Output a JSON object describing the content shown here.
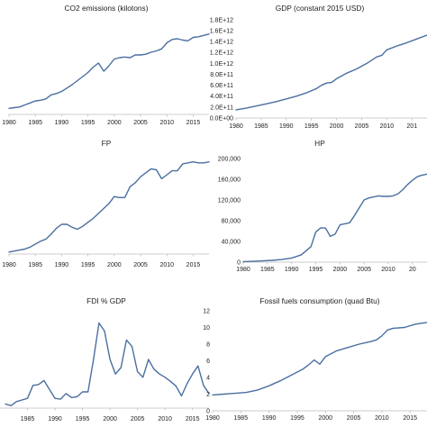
{
  "colors": {
    "line": "#4a6fa0",
    "axis": "#bdbdbd",
    "text": "#222222"
  },
  "chart_data": [
    {
      "type": "line",
      "title": "CO2 emissions (kilotons)",
      "xlabel": "",
      "ylabel": "",
      "xlim": [
        1980,
        2018
      ],
      "x_ticks": [
        "1980",
        "1985",
        "1990",
        "1995",
        "2000",
        "2005",
        "2010",
        "2015"
      ],
      "y_ticks": [
        "",
        "",
        "",
        "",
        "",
        "",
        "",
        ""
      ],
      "ylim": [
        0,
        7
      ],
      "grid": false,
      "series": [
        {
          "x": [
            1980,
            1981,
            1982,
            1983,
            1984,
            1985,
            1986,
            1987,
            1988,
            1989,
            1990,
            1991,
            1992,
            1993,
            1994,
            1995,
            1996,
            1997,
            1998,
            1999,
            2000,
            2001,
            2002,
            2003,
            2004,
            2005,
            2006,
            2007,
            2008,
            2009,
            2010,
            2011,
            2012,
            2013,
            2014,
            2015,
            2016,
            2017,
            2018
          ],
          "y": [
            0.45,
            0.5,
            0.55,
            0.7,
            0.85,
            1.0,
            1.05,
            1.15,
            1.45,
            1.55,
            1.7,
            1.95,
            2.2,
            2.5,
            2.8,
            3.1,
            3.5,
            3.8,
            3.2,
            3.6,
            4.1,
            4.2,
            4.25,
            4.2,
            4.4,
            4.4,
            4.45,
            4.6,
            4.7,
            4.85,
            5.3,
            5.55,
            5.6,
            5.5,
            5.45,
            5.7,
            5.75,
            5.85,
            5.95
          ]
        }
      ]
    },
    {
      "type": "line",
      "title": "GDP (constant 2015 USD)",
      "xlabel": "",
      "ylabel": "",
      "xlim": [
        1980,
        2018
      ],
      "x_ticks": [
        "1980",
        "1985",
        "1990",
        "1995",
        "2000",
        "2005",
        "2010",
        "201"
      ],
      "y_ticks": [
        "0.0E+00",
        "2.0E+11",
        "4.0E+11",
        "6.0E+11",
        "8.0E+11",
        "1.0E+12",
        "1.2E+12",
        "1.4E+12",
        "1.6E+12",
        "1.8E+12"
      ],
      "ylim": [
        0,
        1.8
      ],
      "grid": false,
      "series": [
        {
          "x": [
            1980,
            1982,
            1984,
            1986,
            1988,
            1990,
            1992,
            1994,
            1996,
            1997,
            1998,
            1999,
            2000,
            2002,
            2004,
            2006,
            2008,
            2009,
            2010,
            2012,
            2014,
            2016,
            2018
          ],
          "y": [
            0.15,
            0.18,
            0.22,
            0.26,
            0.3,
            0.35,
            0.4,
            0.46,
            0.54,
            0.6,
            0.64,
            0.65,
            0.72,
            0.82,
            0.9,
            1.0,
            1.12,
            1.15,
            1.25,
            1.32,
            1.38,
            1.45,
            1.52
          ]
        }
      ]
    },
    {
      "type": "line",
      "title": "FP",
      "xlabel": "",
      "ylabel": "",
      "xlim": [
        1980,
        2018
      ],
      "x_ticks": [
        "1980",
        "1985",
        "1990",
        "1995",
        "2000",
        "2005",
        "2010",
        "2015"
      ],
      "y_ticks": [
        "",
        "",
        "",
        "",
        "",
        ""
      ],
      "ylim": [
        0,
        5
      ],
      "grid": false,
      "series": [
        {
          "x": [
            1980,
            1981,
            1982,
            1983,
            1984,
            1985,
            1986,
            1987,
            1988,
            1989,
            1990,
            1991,
            1992,
            1993,
            1994,
            1995,
            1996,
            1997,
            1998,
            1999,
            2000,
            2001,
            2002,
            2003,
            2004,
            2005,
            2006,
            2007,
            2008,
            2009,
            2010,
            2011,
            2012,
            2013,
            2014,
            2015,
            2016,
            2017,
            2018
          ],
          "y": [
            0.1,
            0.15,
            0.2,
            0.25,
            0.35,
            0.5,
            0.65,
            0.75,
            1.0,
            1.3,
            1.5,
            1.5,
            1.35,
            1.25,
            1.4,
            1.6,
            1.8,
            2.05,
            2.3,
            2.55,
            2.9,
            2.85,
            2.85,
            3.4,
            3.6,
            3.9,
            4.1,
            4.3,
            4.25,
            3.8,
            4.0,
            4.2,
            4.2,
            4.55,
            4.6,
            4.65,
            4.6,
            4.6,
            4.65
          ]
        }
      ]
    },
    {
      "type": "line",
      "title": "HP",
      "xlabel": "",
      "ylabel": "",
      "xlim": [
        1980,
        2018
      ],
      "x_ticks": [
        "1980",
        "1985",
        "1990",
        "1995",
        "2000",
        "2005",
        "2010",
        "20"
      ],
      "y_ticks": [
        "0",
        "40,000",
        "80,000",
        "120,000",
        "160,000",
        "200,000"
      ],
      "ylim": [
        0,
        200000
      ],
      "grid": false,
      "series": [
        {
          "x": [
            1980,
            1982,
            1984,
            1986,
            1988,
            1990,
            1992,
            1993,
            1994,
            1995,
            1996,
            1997,
            1998,
            1999,
            2000,
            2001,
            2002,
            2003,
            2004,
            2005,
            2006,
            2007,
            2008,
            2009,
            2010,
            2011,
            2012,
            2013,
            2014,
            2015,
            2016,
            2017,
            2018
          ],
          "y": [
            1000,
            1500,
            2500,
            3500,
            5000,
            8000,
            14000,
            22000,
            30000,
            58000,
            66000,
            66000,
            50000,
            54000,
            72000,
            74000,
            76000,
            90000,
            105000,
            120000,
            124000,
            126000,
            128000,
            127000,
            127000,
            128000,
            132000,
            140000,
            150000,
            158000,
            165000,
            168000,
            170000
          ]
        }
      ]
    },
    {
      "type": "line",
      "title": "FDI % GDP",
      "xlabel": "",
      "ylabel": "",
      "xlim": [
        1980,
        2018
      ],
      "x_ticks": [
        "1985",
        "1990",
        "1995",
        "2000",
        "2005",
        "2010",
        "2015"
      ],
      "y_ticks": [
        "",
        "",
        "",
        "",
        "",
        "",
        ""
      ],
      "ylim": [
        0,
        12
      ],
      "grid": false,
      "series": [
        {
          "x": [
            1981,
            1982,
            1983,
            1984,
            1985,
            1986,
            1987,
            1988,
            1989,
            1990,
            1991,
            1992,
            1993,
            1994,
            1995,
            1996,
            1997,
            1998,
            1999,
            2000,
            2001,
            2002,
            2003,
            2004,
            2005,
            2006,
            2007,
            2008,
            2009,
            2010,
            2011,
            2012,
            2013,
            2014,
            2015,
            2016,
            2017,
            2018
          ],
          "y": [
            0.5,
            0.3,
            0.8,
            1.0,
            1.2,
            2.8,
            2.9,
            3.4,
            2.3,
            1.2,
            1.1,
            1.8,
            1.3,
            1.4,
            2.0,
            2.0,
            6.0,
            10.5,
            9.5,
            6.0,
            4.2,
            5.0,
            8.4,
            7.6,
            4.5,
            3.8,
            6.0,
            4.8,
            4.2,
            3.8,
            3.3,
            2.7,
            1.5,
            3.0,
            4.2,
            5.2,
            2.8,
            1.8
          ]
        }
      ]
    },
    {
      "type": "line",
      "title": "Fossil fuels consumption (quad Btu)",
      "xlabel": "",
      "ylabel": "",
      "xlim": [
        1980,
        2018
      ],
      "x_ticks": [
        "1980",
        "1985",
        "1990",
        "1995",
        "2000",
        "2005",
        "2010",
        "2015"
      ],
      "y_ticks": [
        "0",
        "2",
        "4",
        "6",
        "8",
        "10",
        "12"
      ],
      "ylim": [
        0,
        12
      ],
      "grid": false,
      "series": [
        {
          "x": [
            1980,
            1982,
            1984,
            1986,
            1988,
            1990,
            1992,
            1994,
            1996,
            1997,
            1998,
            1999,
            2000,
            2002,
            2004,
            2006,
            2008,
            2009,
            2010,
            2011,
            2012,
            2014,
            2016,
            2018
          ],
          "y": [
            1.9,
            2.0,
            2.1,
            2.2,
            2.5,
            3.0,
            3.6,
            4.3,
            5.0,
            5.5,
            6.1,
            5.6,
            6.5,
            7.2,
            7.6,
            8.0,
            8.3,
            8.5,
            9.0,
            9.7,
            9.9,
            10.0,
            10.4,
            10.6
          ]
        }
      ]
    }
  ]
}
